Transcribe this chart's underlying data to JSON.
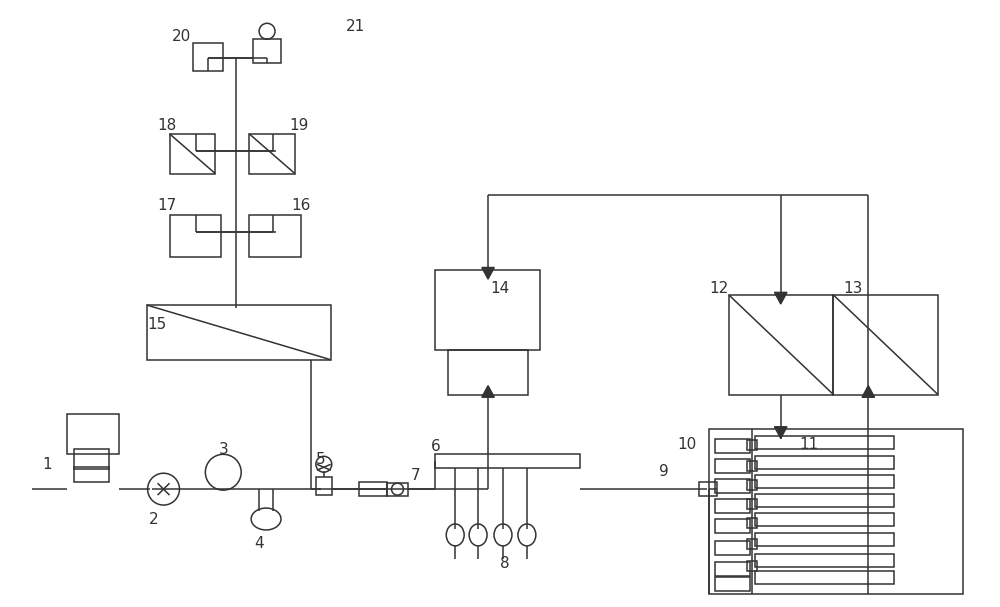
{
  "bg_color": "#ffffff",
  "line_color": "#333333",
  "line_width": 1.1,
  "fig_width": 10.0,
  "fig_height": 6.07,
  "dpi": 100
}
